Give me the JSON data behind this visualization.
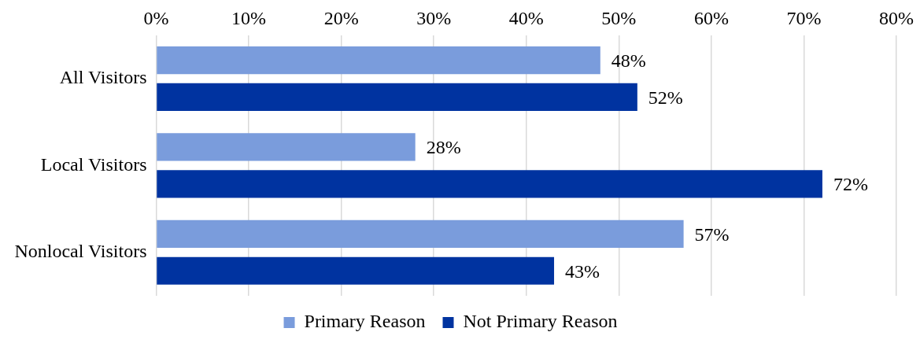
{
  "chart_data": {
    "type": "bar",
    "orientation": "horizontal",
    "categories": [
      "All Visitors",
      "Local Visitors",
      "Nonlocal Visitors"
    ],
    "series": [
      {
        "name": "Primary Reason",
        "color": "#7a9cdc",
        "values": [
          48,
          28,
          57
        ],
        "value_labels": [
          "48%",
          "28%",
          "57%"
        ]
      },
      {
        "name": "Not Primary Reason",
        "color": "#0033a0",
        "values": [
          52,
          72,
          43
        ],
        "value_labels": [
          "52%",
          "72%",
          "43%"
        ]
      }
    ],
    "xlim": [
      0,
      80
    ],
    "xticks": [
      {
        "value": 0,
        "label": "0%"
      },
      {
        "value": 10,
        "label": "10%"
      },
      {
        "value": 20,
        "label": "20%"
      },
      {
        "value": 30,
        "label": "30%"
      },
      {
        "value": 40,
        "label": "40%"
      },
      {
        "value": 50,
        "label": "50%"
      },
      {
        "value": 60,
        "label": "60%"
      },
      {
        "value": 70,
        "label": "70%"
      },
      {
        "value": 80,
        "label": "80%"
      }
    ],
    "grid": "x",
    "legend": "bottom"
  }
}
